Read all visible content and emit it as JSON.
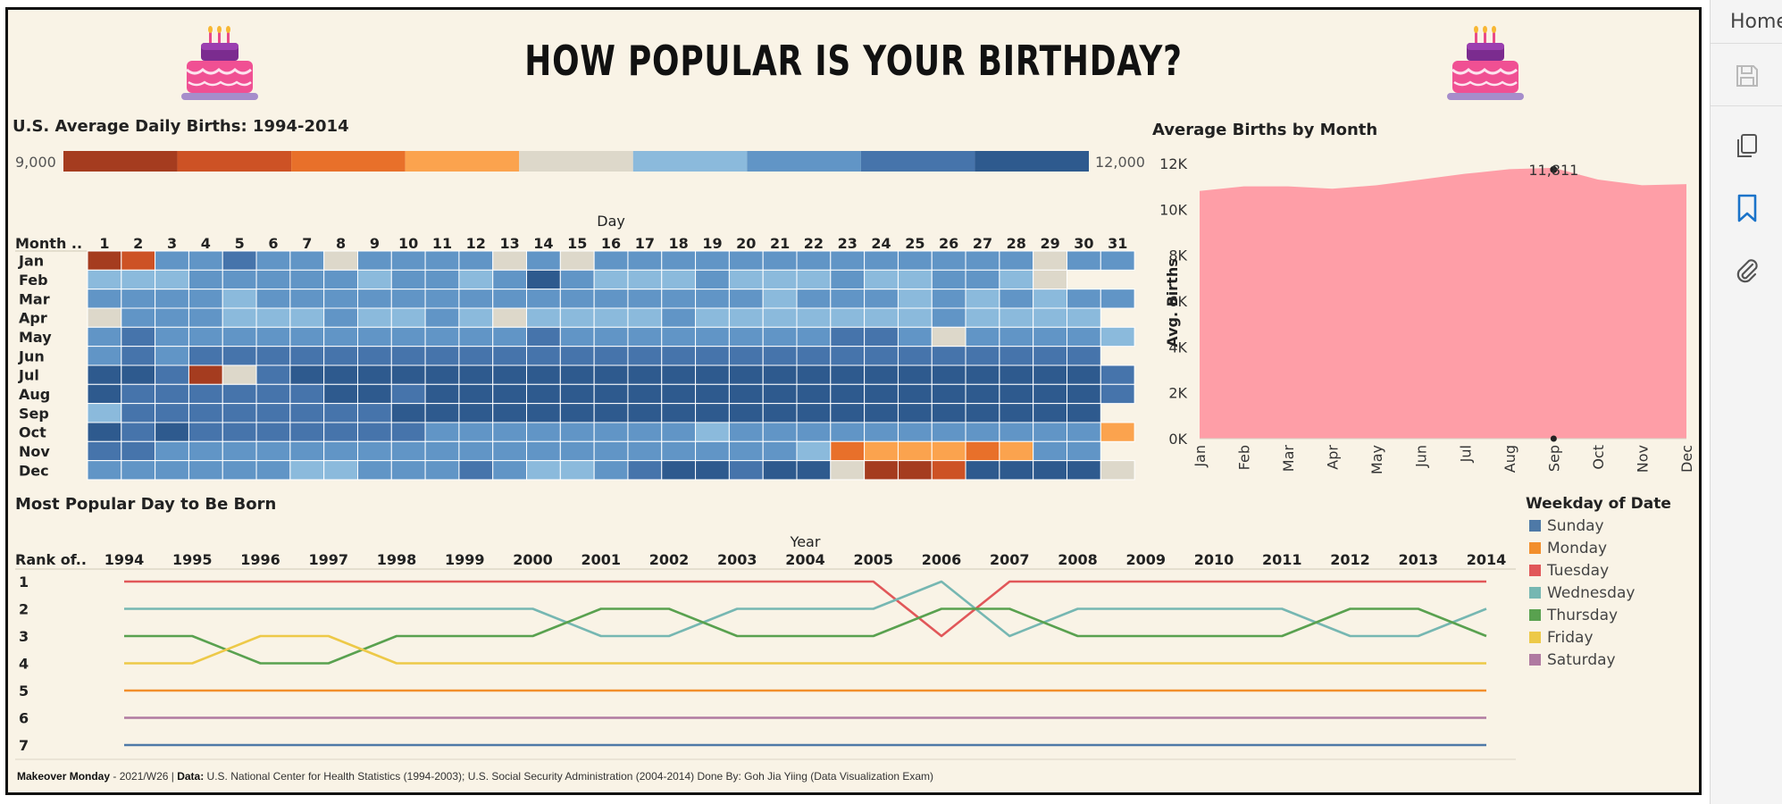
{
  "title": "HOW POPULAR IS YOUR BIRTHDAY?",
  "sidebar": {
    "home_label": "Home"
  },
  "colors": {
    "background": "#f9f3e6",
    "area_fill": "#fe9ea7",
    "frame": "#111111"
  },
  "heatmap_section": {
    "title": "U.S. Average Daily Births: 1994-2014",
    "legend_min": "9,000",
    "legend_max": "12,000",
    "legend_colors": [
      "#a53c1f",
      "#cd5225",
      "#e8702a",
      "#fba34e",
      "#ddd8ca",
      "#8bbadc",
      "#6195c6",
      "#4674ab",
      "#2e5a8e"
    ]
  },
  "area_section": {
    "title": "Average Births by Month"
  },
  "bump_section": {
    "title": "Most Popular Day to Be Born",
    "legend_title": "Weekday of Date"
  },
  "footer": {
    "makeover_label": "Makeover Monday",
    "week": " - 2021/W26 | ",
    "data_label": "Data:",
    "source": " U.S. National Center for Health Statistics (1994-2003); U.S. Social Security Administration (2004-2014)  Done By: Goh Jia Yiing (Data Visualization Exam)"
  },
  "chart_data": [
    {
      "type": "heatmap",
      "title": "U.S. Average Daily Births: 1994-2014",
      "xlabel": "Day",
      "ylabel": "Month ..",
      "x": [
        "1",
        "2",
        "3",
        "4",
        "5",
        "6",
        "7",
        "8",
        "9",
        "10",
        "11",
        "12",
        "13",
        "14",
        "15",
        "16",
        "17",
        "18",
        "19",
        "20",
        "21",
        "22",
        "23",
        "24",
        "25",
        "26",
        "27",
        "28",
        "29",
        "30",
        "31"
      ],
      "y": [
        "Jan",
        "Feb",
        "Mar",
        "Apr",
        "May",
        "Jun",
        "Jul",
        "Aug",
        "Sep",
        "Oct",
        "Nov",
        "Dec"
      ],
      "color_range": [
        9000,
        12000
      ],
      "color_steps": 9,
      "values_bin_index": [
        [
          0,
          1,
          6,
          6,
          7,
          6,
          6,
          4,
          6,
          6,
          6,
          6,
          4,
          6,
          4,
          6,
          6,
          6,
          6,
          6,
          6,
          6,
          6,
          6,
          6,
          6,
          6,
          6,
          4,
          6,
          6
        ],
        [
          5,
          5,
          5,
          6,
          6,
          6,
          6,
          6,
          5,
          6,
          6,
          5,
          6,
          8,
          6,
          5,
          5,
          5,
          6,
          5,
          5,
          5,
          6,
          5,
          5,
          6,
          6,
          5,
          4,
          null,
          null
        ],
        [
          6,
          6,
          6,
          6,
          5,
          6,
          6,
          6,
          6,
          6,
          6,
          6,
          6,
          6,
          6,
          6,
          6,
          6,
          6,
          6,
          5,
          6,
          6,
          6,
          5,
          6,
          5,
          6,
          5,
          6,
          6
        ],
        [
          4,
          6,
          6,
          6,
          5,
          5,
          5,
          6,
          5,
          5,
          6,
          5,
          4,
          5,
          5,
          5,
          5,
          6,
          5,
          5,
          5,
          5,
          5,
          5,
          5,
          6,
          5,
          5,
          5,
          5,
          null
        ],
        [
          6,
          7,
          6,
          6,
          6,
          6,
          6,
          6,
          6,
          6,
          6,
          6,
          6,
          7,
          6,
          6,
          6,
          6,
          6,
          6,
          6,
          6,
          7,
          7,
          6,
          4,
          6,
          6,
          6,
          6,
          5
        ],
        [
          6,
          7,
          6,
          7,
          7,
          7,
          7,
          7,
          7,
          7,
          7,
          7,
          7,
          7,
          7,
          7,
          7,
          7,
          7,
          7,
          7,
          7,
          7,
          7,
          7,
          7,
          7,
          7,
          7,
          7,
          null
        ],
        [
          8,
          8,
          7,
          0,
          4,
          7,
          8,
          8,
          8,
          8,
          8,
          8,
          8,
          8,
          8,
          8,
          8,
          8,
          8,
          8,
          8,
          8,
          8,
          8,
          8,
          8,
          8,
          8,
          8,
          8,
          7
        ],
        [
          8,
          7,
          7,
          7,
          7,
          7,
          7,
          8,
          8,
          7,
          8,
          8,
          8,
          8,
          8,
          8,
          8,
          8,
          8,
          8,
          8,
          8,
          8,
          8,
          8,
          8,
          8,
          8,
          8,
          8,
          7
        ],
        [
          5,
          7,
          7,
          7,
          7,
          7,
          7,
          7,
          7,
          8,
          8,
          8,
          8,
          8,
          8,
          8,
          8,
          8,
          8,
          8,
          8,
          8,
          8,
          8,
          8,
          8,
          8,
          8,
          8,
          8,
          null
        ],
        [
          8,
          7,
          8,
          7,
          7,
          7,
          7,
          7,
          7,
          7,
          6,
          6,
          6,
          6,
          6,
          6,
          6,
          6,
          5,
          6,
          6,
          6,
          6,
          6,
          6,
          6,
          6,
          6,
          6,
          6,
          3
        ],
        [
          7,
          7,
          6,
          6,
          6,
          6,
          6,
          6,
          6,
          6,
          6,
          6,
          6,
          6,
          6,
          6,
          6,
          6,
          6,
          6,
          6,
          5,
          2,
          3,
          3,
          3,
          2,
          3,
          6,
          6,
          null
        ],
        [
          6,
          6,
          6,
          6,
          6,
          6,
          5,
          5,
          6,
          6,
          6,
          7,
          6,
          5,
          5,
          6,
          7,
          8,
          8,
          7,
          8,
          8,
          4,
          0,
          0,
          1,
          8,
          8,
          8,
          8,
          4
        ]
      ]
    },
    {
      "type": "area",
      "title": "Average Births by Month",
      "xlabel": "",
      "ylabel": "Avg. Births",
      "categories": [
        "Jan",
        "Feb",
        "Mar",
        "Apr",
        "May",
        "Jun",
        "Jul",
        "Aug",
        "Sep",
        "Oct",
        "Nov",
        "Dec"
      ],
      "values": [
        10800,
        11000,
        11000,
        10900,
        11050,
        11300,
        11550,
        11750,
        11811,
        11300,
        11050,
        11100
      ],
      "ylim": [
        0,
        12000
      ],
      "yticks": [
        "12K",
        "10K",
        "8K",
        "6K",
        "4K",
        "2K",
        "0K"
      ],
      "annotation": "11,811"
    },
    {
      "type": "line",
      "title": "Most Popular Day to Be Born",
      "xlabel": "Year",
      "ylabel": "Rank of..",
      "x": [
        "1994",
        "1995",
        "1996",
        "1997",
        "1998",
        "1999",
        "2000",
        "2001",
        "2002",
        "2003",
        "2004",
        "2005",
        "2006",
        "2007",
        "2008",
        "2009",
        "2010",
        "2011",
        "2012",
        "2013",
        "2014"
      ],
      "ranks": [
        "1",
        "2",
        "3",
        "4",
        "5",
        "6",
        "7"
      ],
      "legend_title": "Weekday of Date",
      "series": [
        {
          "name": "Sunday",
          "color": "#4e79a7",
          "values": [
            7,
            7,
            7,
            7,
            7,
            7,
            7,
            7,
            7,
            7,
            7,
            7,
            7,
            7,
            7,
            7,
            7,
            7,
            7,
            7,
            7
          ]
        },
        {
          "name": "Monday",
          "color": "#f28e2b",
          "values": [
            5,
            5,
            5,
            5,
            5,
            5,
            5,
            5,
            5,
            5,
            5,
            5,
            5,
            5,
            5,
            5,
            5,
            5,
            5,
            5,
            5
          ]
        },
        {
          "name": "Tuesday",
          "color": "#e15759",
          "values": [
            1,
            1,
            1,
            1,
            1,
            1,
            1,
            1,
            1,
            1,
            1,
            1,
            3,
            1,
            1,
            1,
            1,
            1,
            1,
            1,
            1
          ]
        },
        {
          "name": "Wednesday",
          "color": "#76b7b2",
          "values": [
            2,
            2,
            2,
            2,
            2,
            2,
            2,
            3,
            3,
            2,
            2,
            2,
            1,
            3,
            2,
            2,
            2,
            2,
            3,
            3,
            2
          ]
        },
        {
          "name": "Thursday",
          "color": "#59a14f",
          "values": [
            3,
            3,
            4,
            4,
            3,
            3,
            3,
            2,
            2,
            3,
            3,
            3,
            2,
            2,
            3,
            3,
            3,
            3,
            2,
            2,
            3
          ]
        },
        {
          "name": "Friday",
          "color": "#edc948",
          "values": [
            4,
            4,
            3,
            3,
            4,
            4,
            4,
            4,
            4,
            4,
            4,
            4,
            4,
            4,
            4,
            4,
            4,
            4,
            4,
            4,
            4
          ]
        },
        {
          "name": "Saturday",
          "color": "#b07aa1",
          "values": [
            6,
            6,
            6,
            6,
            6,
            6,
            6,
            6,
            6,
            6,
            6,
            6,
            6,
            6,
            6,
            6,
            6,
            6,
            6,
            6,
            6
          ]
        }
      ]
    }
  ]
}
